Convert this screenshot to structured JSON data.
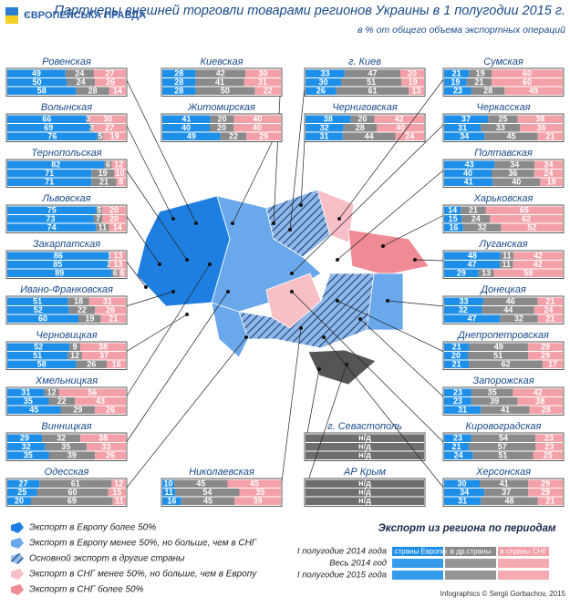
{
  "header": {
    "logo": "ЄВРОПЕЙСЬКА ПРАВДА",
    "title": "Партнеры внешней торговли товарами регионов Украины в 1 полугодии 2015 г.",
    "subtitle": "в % от общего объема экспортных операций"
  },
  "regions": [
    {
      "name": "Ровенская",
      "rows": [
        [
          49,
          24,
          27
        ],
        [
          50,
          24,
          26
        ],
        [
          58,
          28,
          14
        ]
      ]
    },
    {
      "name": "Волынская",
      "rows": [
        [
          66,
          3,
          30
        ],
        [
          69,
          3,
          27
        ],
        [
          76,
          5,
          19
        ]
      ]
    },
    {
      "name": "Тернопольская",
      "rows": [
        [
          82,
          6,
          12
        ],
        [
          71,
          19,
          10
        ],
        [
          71,
          21,
          8
        ]
      ]
    },
    {
      "name": "Львовская",
      "rows": [
        [
          75,
          5,
          20
        ],
        [
          73,
          7,
          20
        ],
        [
          74,
          11,
          14
        ]
      ]
    },
    {
      "name": "Закарпатская",
      "rows": [
        [
          86,
          1,
          13
        ],
        [
          85,
          2,
          13
        ],
        [
          89,
          6,
          6
        ]
      ]
    },
    {
      "name": "Ивано-Франковская",
      "rows": [
        [
          51,
          18,
          31
        ],
        [
          52,
          22,
          26
        ],
        [
          60,
          19,
          21
        ]
      ]
    },
    {
      "name": "Черновицкая",
      "rows": [
        [
          52,
          9,
          38
        ],
        [
          51,
          12,
          37
        ],
        [
          58,
          26,
          16
        ]
      ]
    },
    {
      "name": "Хмельницкая",
      "rows": [
        [
          31,
          12,
          56
        ],
        [
          35,
          22,
          43
        ],
        [
          45,
          29,
          26
        ]
      ]
    },
    {
      "name": "Винницкая",
      "rows": [
        [
          29,
          32,
          38
        ],
        [
          32,
          35,
          33
        ],
        [
          35,
          39,
          26
        ]
      ]
    },
    {
      "name": "Одесская",
      "rows": [
        [
          27,
          61,
          12
        ],
        [
          25,
          60,
          15
        ],
        [
          20,
          69,
          11
        ]
      ]
    },
    {
      "name": "Киевская",
      "rows": [
        [
          28,
          42,
          30
        ],
        [
          28,
          41,
          31
        ],
        [
          28,
          50,
          22
        ]
      ]
    },
    {
      "name": "Житомирская",
      "rows": [
        [
          41,
          20,
          40
        ],
        [
          40,
          20,
          40
        ],
        [
          49,
          22,
          29
        ]
      ]
    },
    {
      "name": "Николаевская",
      "rows": [
        [
          10,
          45,
          45
        ],
        [
          11,
          54,
          35
        ],
        [
          16,
          45,
          39
        ]
      ]
    },
    {
      "name": "г. Киев",
      "rows": [
        [
          33,
          47,
          20
        ],
        [
          30,
          51,
          19
        ],
        [
          26,
          61,
          13
        ]
      ]
    },
    {
      "name": "Черниговская",
      "rows": [
        [
          38,
          20,
          42
        ],
        [
          32,
          28,
          40
        ],
        [
          31,
          44,
          24
        ]
      ]
    },
    {
      "name": "г. Севастополь",
      "rows": [
        [
          "н/д"
        ],
        [
          "н/д"
        ],
        [
          "н/д"
        ]
      ]
    },
    {
      "name": "АР Крым",
      "rows": [
        [
          "н/д"
        ],
        [
          "н/д"
        ],
        [
          "н/д"
        ]
      ]
    },
    {
      "name": "Сумская",
      "rows": [
        [
          21,
          19,
          60
        ],
        [
          19,
          21,
          60
        ],
        [
          23,
          28,
          49
        ]
      ]
    },
    {
      "name": "Черкасская",
      "rows": [
        [
          37,
          25,
          38
        ],
        [
          31,
          33,
          36
        ],
        [
          34,
          45,
          21
        ]
      ]
    },
    {
      "name": "Полтавская",
      "rows": [
        [
          43,
          34,
          24
        ],
        [
          40,
          36,
          24
        ],
        [
          41,
          40,
          19
        ]
      ]
    },
    {
      "name": "Харьковская",
      "rows": [
        [
          14,
          21,
          65
        ],
        [
          15,
          24,
          62
        ],
        [
          16,
          32,
          52
        ]
      ]
    },
    {
      "name": "Луганская",
      "rows": [
        [
          48,
          11,
          42
        ],
        [
          47,
          11,
          42
        ],
        [
          29,
          13,
          58
        ]
      ]
    },
    {
      "name": "Донецкая",
      "rows": [
        [
          33,
          46,
          21
        ],
        [
          32,
          44,
          24
        ],
        [
          47,
          32,
          21
        ]
      ]
    },
    {
      "name": "Днепропетровская",
      "rows": [
        [
          21,
          49,
          29
        ],
        [
          20,
          51,
          29
        ],
        [
          21,
          62,
          17
        ]
      ]
    },
    {
      "name": "Запорожская",
      "rows": [
        [
          23,
          35,
          42
        ],
        [
          23,
          39,
          38
        ],
        [
          31,
          41,
          28
        ]
      ]
    },
    {
      "name": "Кировоградская",
      "rows": [
        [
          23,
          54,
          23
        ],
        [
          21,
          57,
          23
        ],
        [
          24,
          51,
          25
        ]
      ]
    },
    {
      "name": "Херсонская",
      "rows": [
        [
          30,
          41,
          29
        ],
        [
          34,
          37,
          29
        ],
        [
          31,
          48,
          21
        ]
      ]
    }
  ],
  "legend": [
    "Экспорт в Европу более 50%",
    "Экспорт в Европу менее 50%, но больше, чем в СНГ",
    "Основной экспорт в другие страны",
    "Экспорт в СНГ менее 50%, но больше, чем в Европу",
    "Экспорт в СНГ более 50%"
  ],
  "period_legend": {
    "title": "Экспорт из региона по периодам",
    "periods": [
      "I полугодие 2014 года",
      "Весь 2014 год",
      "I полугодие 2015 года"
    ],
    "segments": [
      "в страны Европы",
      "в др.страны",
      "в страны СНГ"
    ]
  },
  "credit": "Infographics © Sergii Gorbachov, 2015"
}
